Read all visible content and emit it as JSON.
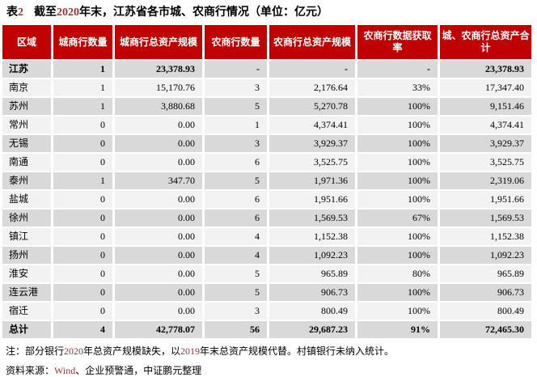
{
  "colors": {
    "header_bg": "#C00000",
    "header_text": "#FFFFFF",
    "accent_red": "#953735",
    "row_dark": "#D9D9D9",
    "row_light": "#F2F2F2",
    "body_text": "#000000"
  },
  "title": {
    "t1": "表",
    "t2": "2",
    "t3": "截至",
    "t4": "2020",
    "t5": "年末，江苏省各市城、农商行情况（单位：亿元）"
  },
  "table": {
    "columns": [
      "区域",
      "城商行数量",
      "城商行总资产规模",
      "农商行数量",
      "农商行总资产规模",
      "农商行数据获取率",
      "城、农商行总资产合计"
    ],
    "rows": [
      {
        "region": "江苏",
        "values": [
          "1",
          "23,378.93",
          "-",
          "-",
          "-",
          "23,378.93"
        ],
        "bold": true
      },
      {
        "region": "南京",
        "values": [
          "1",
          "15,170.76",
          "3",
          "2,176.64",
          "33%",
          "17,347.40"
        ],
        "bold": false
      },
      {
        "region": "苏州",
        "values": [
          "1",
          "3,880.68",
          "5",
          "5,270.78",
          "100%",
          "9,151.46"
        ],
        "bold": false
      },
      {
        "region": "常州",
        "values": [
          "0",
          "0.00",
          "1",
          "4,374.41",
          "100%",
          "4,374.41"
        ],
        "bold": false
      },
      {
        "region": "无锡",
        "values": [
          "0",
          "0.00",
          "3",
          "3,929.37",
          "100%",
          "3,929.37"
        ],
        "bold": false
      },
      {
        "region": "南通",
        "values": [
          "0",
          "0.00",
          "6",
          "3,525.75",
          "100%",
          "3,525.75"
        ],
        "bold": false
      },
      {
        "region": "泰州",
        "values": [
          "1",
          "347.70",
          "5",
          "1,971.36",
          "100%",
          "2,319.06"
        ],
        "bold": false
      },
      {
        "region": "盐城",
        "values": [
          "0",
          "0.00",
          "6",
          "1,951.66",
          "100%",
          "1,951.66"
        ],
        "bold": false
      },
      {
        "region": "徐州",
        "values": [
          "0",
          "0.00",
          "6",
          "1,569.53",
          "67%",
          "1,569.53"
        ],
        "bold": false
      },
      {
        "region": "镇江",
        "values": [
          "0",
          "0.00",
          "4",
          "1,152.38",
          "100%",
          "1,152.38"
        ],
        "bold": false
      },
      {
        "region": "扬州",
        "values": [
          "0",
          "0.00",
          "4",
          "1,092.23",
          "100%",
          "1,092.23"
        ],
        "bold": false
      },
      {
        "region": "淮安",
        "values": [
          "0",
          "0.00",
          "5",
          "965.89",
          "80%",
          "965.89"
        ],
        "bold": false
      },
      {
        "region": "连云港",
        "values": [
          "0",
          "0.00",
          "5",
          "906.73",
          "100%",
          "906.73"
        ],
        "bold": false
      },
      {
        "region": "宿迁",
        "values": [
          "0",
          "0.00",
          "3",
          "800.49",
          "100%",
          "800.49"
        ],
        "bold": false
      },
      {
        "region": "总计",
        "values": [
          "4",
          "42,778.07",
          "56",
          "29,687.23",
          "91%",
          "72,465.30"
        ],
        "bold": true,
        "total": true
      }
    ]
  },
  "note": {
    "n1": "注：部分银行",
    "n2": "2020",
    "n3": "年总资产规模缺失，以",
    "n4": "2019",
    "n5": "年末总资产规模代替。村镇银行未纳入统计。"
  },
  "source": {
    "s1": "资料来源：",
    "s2": "Wind",
    "s3": "、企业预警通，中证鹏元整理"
  }
}
